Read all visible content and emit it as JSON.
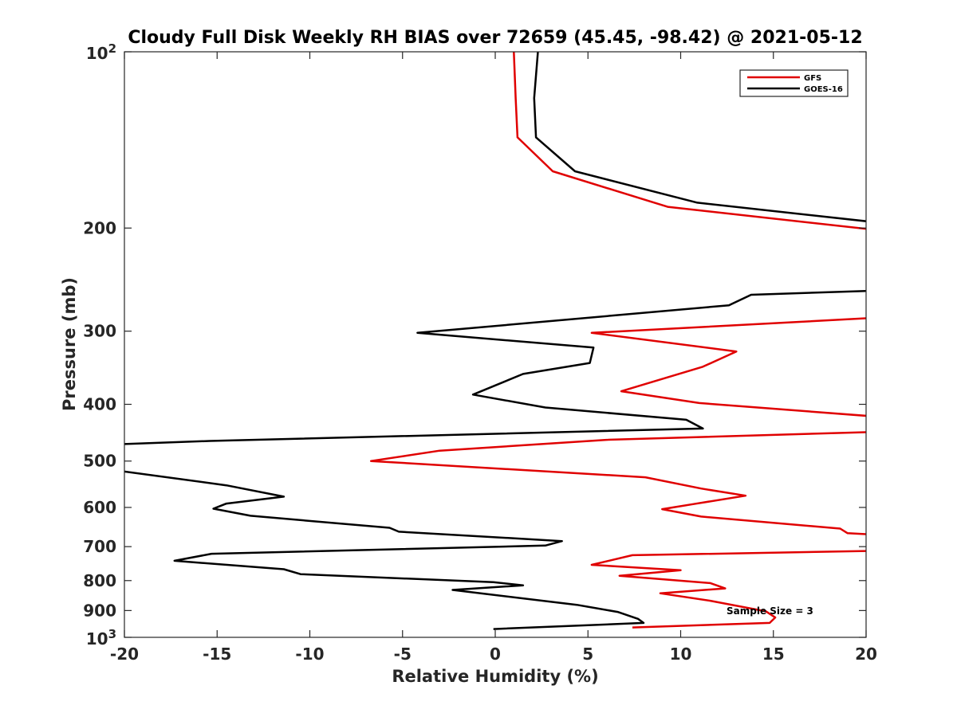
{
  "chart_data": {
    "type": "line",
    "title": "Cloudy Full Disk Weekly RH BIAS over 72659 (45.45, -98.42) @ 2021-05-12",
    "xlabel": "Relative Humidity (%)",
    "ylabel": "Pressure (mb)",
    "xlim": [
      -20,
      20
    ],
    "ylim": [
      100,
      1000
    ],
    "y_scale": "log",
    "y_reversed": true,
    "x_ticks": [
      "-20",
      "-15",
      "-10",
      "-5",
      "0",
      "5",
      "10",
      "15",
      "20"
    ],
    "y_ticks": [
      {
        "value": 100,
        "base": "10",
        "exp": "2"
      },
      {
        "value": 200,
        "label": "200"
      },
      {
        "value": 300,
        "label": "300"
      },
      {
        "value": 400,
        "label": "400"
      },
      {
        "value": 500,
        "label": "500"
      },
      {
        "value": 600,
        "label": "600"
      },
      {
        "value": 700,
        "label": "700"
      },
      {
        "value": 800,
        "label": "800"
      },
      {
        "value": 900,
        "label": "900"
      },
      {
        "value": 1000,
        "base": "10",
        "exp": "3"
      }
    ],
    "grid": false,
    "legend_position": "top-right",
    "annotation": "Sample Size = 3",
    "series": [
      {
        "name": "GFS",
        "color": "#e00000",
        "points": [
          [
            1.0,
            100
          ],
          [
            1.1,
            120
          ],
          [
            1.2,
            140
          ],
          [
            3.1,
            160
          ],
          [
            9.3,
            184
          ],
          [
            20.2,
            201
          ],
          [
            null,
            null
          ],
          [
            20.2,
            285
          ],
          [
            5.2,
            302
          ],
          [
            13.0,
            325
          ],
          [
            11.2,
            345
          ],
          [
            6.8,
            380
          ],
          [
            11.0,
            398
          ],
          [
            20.2,
            419
          ],
          [
            null,
            null
          ],
          [
            20.2,
            446
          ],
          [
            6.0,
            460
          ],
          [
            -3.0,
            480
          ],
          [
            -6.7,
            500
          ],
          [
            8.1,
            533
          ],
          [
            11.1,
            557
          ],
          [
            13.5,
            573
          ],
          [
            10.7,
            592
          ],
          [
            9.0,
            604
          ],
          [
            11.1,
            622
          ],
          [
            18.6,
            652
          ],
          [
            19.0,
            664
          ],
          [
            20.2,
            667
          ],
          [
            null,
            null
          ],
          [
            20.2,
            712
          ],
          [
            7.4,
            724
          ],
          [
            5.2,
            752
          ],
          [
            10.0,
            768
          ],
          [
            6.7,
            785
          ],
          [
            11.6,
            808
          ],
          [
            12.4,
            825
          ],
          [
            8.9,
            841
          ],
          [
            11.6,
            866
          ],
          [
            14.6,
            903
          ],
          [
            15.1,
            925
          ],
          [
            14.8,
            945
          ],
          [
            7.4,
            962
          ]
        ]
      },
      {
        "name": "GOES-16",
        "color": "#000000",
        "points": [
          [
            2.3,
            100
          ],
          [
            2.1,
            120
          ],
          [
            2.2,
            140
          ],
          [
            4.3,
            160
          ],
          [
            10.9,
            181
          ],
          [
            20.2,
            195
          ],
          [
            null,
            null
          ],
          [
            20.2,
            256
          ],
          [
            13.8,
            260
          ],
          [
            12.6,
            271
          ],
          [
            -4.2,
            302
          ],
          [
            5.3,
            320
          ],
          [
            5.1,
            340
          ],
          [
            1.5,
            355
          ],
          [
            -1.2,
            385
          ],
          [
            2.7,
            405
          ],
          [
            10.3,
            425
          ],
          [
            11.2,
            440
          ],
          [
            -15.4,
            462
          ],
          [
            -20.2,
            468
          ],
          [
            null,
            null
          ],
          [
            -20.2,
            520
          ],
          [
            -14.5,
            550
          ],
          [
            -11.4,
            575
          ],
          [
            -14.5,
            591
          ],
          [
            -15.2,
            603
          ],
          [
            -13.2,
            620
          ],
          [
            -5.7,
            650
          ],
          [
            -5.2,
            660
          ],
          [
            3.6,
            685
          ],
          [
            2.7,
            697
          ],
          [
            -15.3,
            720
          ],
          [
            -17.3,
            740
          ],
          [
            -11.4,
            765
          ],
          [
            -10.5,
            780
          ],
          [
            -0.1,
            805
          ],
          [
            1.5,
            815
          ],
          [
            -2.3,
            830
          ],
          [
            4.4,
            880
          ],
          [
            6.6,
            905
          ],
          [
            7.7,
            930
          ],
          [
            8.0,
            945
          ],
          [
            -0.1,
            968
          ]
        ]
      }
    ]
  }
}
